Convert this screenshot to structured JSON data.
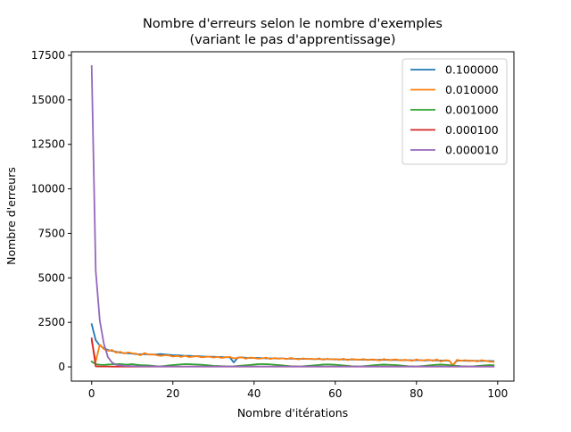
{
  "chart_data": {
    "type": "line",
    "title": "Nombre d'erreurs selon le nombre d'exemples",
    "subtitle": "(variant le pas d'apprentissage)",
    "xlabel": "Nombre d'itérations",
    "ylabel": "Nombre d'erreurs",
    "xlim": [
      -5,
      104
    ],
    "ylim": [
      -800,
      17700
    ],
    "xticks": [
      0,
      20,
      40,
      60,
      80,
      100
    ],
    "xtick_labels": [
      "0",
      "20",
      "40",
      "60",
      "80",
      "100"
    ],
    "yticks": [
      0,
      2500,
      5000,
      7500,
      10000,
      12500,
      15000,
      17500
    ],
    "ytick_labels": [
      "0",
      "2500",
      "5000",
      "7500",
      "10000",
      "12500",
      "15000",
      "17500"
    ],
    "grid": false,
    "legend_position": "top-right",
    "x": [
      0,
      1,
      2,
      3,
      4,
      5,
      6,
      7,
      8,
      9,
      10,
      11,
      12,
      13,
      14,
      15,
      16,
      17,
      18,
      19,
      20,
      21,
      22,
      23,
      24,
      25,
      26,
      27,
      28,
      29,
      30,
      31,
      32,
      33,
      34,
      35,
      36,
      37,
      38,
      39,
      40,
      41,
      42,
      43,
      44,
      45,
      46,
      47,
      48,
      49,
      50,
      51,
      52,
      53,
      54,
      55,
      56,
      57,
      58,
      59,
      60,
      61,
      62,
      63,
      64,
      65,
      66,
      67,
      68,
      69,
      70,
      71,
      72,
      73,
      74,
      75,
      76,
      77,
      78,
      79,
      80,
      81,
      82,
      83,
      84,
      85,
      86,
      87,
      88,
      89,
      90,
      91,
      92,
      93,
      94,
      95,
      96,
      97,
      98,
      99
    ],
    "series": [
      {
        "name": "0.100000",
        "color": "#1f77b4",
        "values": [
          2400,
          1500,
          1200,
          1050,
          950,
          900,
          850,
          800,
          780,
          760,
          740,
          720,
          700,
          720,
          700,
          690,
          700,
          720,
          700,
          680,
          660,
          650,
          640,
          620,
          620,
          600,
          610,
          590,
          580,
          570,
          570,
          560,
          550,
          540,
          540,
          250,
          520,
          540,
          510,
          500,
          500,
          500,
          490,
          480,
          480,
          480,
          470,
          480,
          460,
          460,
          460,
          450,
          450,
          450,
          440,
          440,
          440,
          430,
          440,
          430,
          420,
          420,
          420,
          410,
          420,
          410,
          400,
          410,
          400,
          400,
          390,
          400,
          390,
          400,
          380,
          390,
          380,
          380,
          380,
          370,
          370,
          380,
          360,
          370,
          370,
          360,
          360,
          350,
          360,
          100,
          350,
          350,
          340,
          350,
          340,
          340,
          330,
          340,
          330,
          320
        ]
      },
      {
        "name": "0.010000",
        "color": "#ff7f0e",
        "values": [
          1450,
          300,
          1250,
          1000,
          900,
          950,
          800,
          850,
          750,
          820,
          760,
          740,
          650,
          780,
          690,
          700,
          660,
          620,
          660,
          640,
          580,
          620,
          560,
          620,
          550,
          580,
          600,
          540,
          560,
          580,
          520,
          560,
          500,
          540,
          560,
          480,
          500,
          540,
          460,
          520,
          500,
          460,
          480,
          520,
          440,
          500,
          460,
          480,
          440,
          500,
          460,
          420,
          480,
          440,
          460,
          420,
          480,
          400,
          460,
          420,
          440,
          400,
          460,
          380,
          440,
          420,
          400,
          440,
          380,
          420,
          400,
          360,
          440,
          380,
          400,
          420,
          360,
          400,
          380,
          340,
          420,
          360,
          380,
          400,
          340,
          420,
          300,
          380,
          360,
          100,
          400,
          340,
          380,
          320,
          360,
          300,
          380,
          340,
          300,
          280
        ]
      },
      {
        "name": "0.001000",
        "color": "#2ca02c",
        "values": [
          300,
          150,
          120,
          110,
          130,
          140,
          150,
          160,
          140,
          130,
          150,
          120,
          100,
          90,
          80,
          60,
          40,
          30,
          50,
          80,
          100,
          120,
          140,
          160,
          150,
          140,
          130,
          120,
          100,
          80,
          60,
          50,
          40,
          30,
          20,
          30,
          50,
          70,
          90,
          110,
          130,
          150,
          160,
          150,
          140,
          120,
          100,
          80,
          60,
          40,
          30,
          20,
          30,
          50,
          70,
          90,
          110,
          130,
          140,
          130,
          120,
          100,
          80,
          60,
          40,
          30,
          20,
          40,
          60,
          80,
          100,
          120,
          130,
          120,
          110,
          100,
          80,
          60,
          40,
          30,
          20,
          40,
          60,
          80,
          100,
          120,
          130,
          120,
          100,
          80,
          60,
          40,
          30,
          20,
          30,
          50,
          70,
          90,
          100,
          90
        ]
      },
      {
        "name": "0.000100",
        "color": "#d62728",
        "values": [
          1600,
          30,
          20,
          20,
          20,
          15,
          15,
          15,
          15,
          15,
          15,
          15,
          15,
          15,
          15,
          15,
          15,
          15,
          15,
          15,
          15,
          15,
          15,
          15,
          15,
          15,
          15,
          15,
          15,
          15,
          15,
          15,
          15,
          15,
          15,
          15,
          15,
          15,
          15,
          15,
          15,
          15,
          15,
          15,
          15,
          15,
          15,
          15,
          15,
          15,
          15,
          15,
          15,
          15,
          15,
          15,
          15,
          15,
          15,
          15,
          15,
          15,
          15,
          15,
          15,
          15,
          15,
          15,
          15,
          15,
          15,
          15,
          15,
          15,
          15,
          15,
          15,
          15,
          15,
          15,
          15,
          15,
          15,
          15,
          15,
          15,
          15,
          15,
          15,
          15,
          15,
          15,
          15,
          15,
          15,
          15,
          15,
          15,
          15,
          15
        ]
      },
      {
        "name": "0.000010",
        "color": "#9467bd",
        "values": [
          16900,
          5400,
          2600,
          1300,
          550,
          250,
          120,
          80,
          60,
          50,
          40,
          35,
          30,
          28,
          26,
          25,
          24,
          23,
          22,
          21,
          20,
          20,
          20,
          20,
          20,
          20,
          20,
          20,
          20,
          20,
          20,
          20,
          20,
          20,
          20,
          20,
          20,
          20,
          20,
          20,
          20,
          20,
          20,
          20,
          20,
          20,
          20,
          20,
          20,
          20,
          20,
          20,
          20,
          20,
          20,
          20,
          20,
          20,
          20,
          20,
          20,
          20,
          20,
          20,
          20,
          20,
          20,
          20,
          20,
          20,
          20,
          20,
          20,
          20,
          20,
          20,
          20,
          20,
          20,
          20,
          20,
          20,
          20,
          20,
          20,
          20,
          20,
          20,
          20,
          20,
          20,
          20,
          20,
          20,
          20,
          20,
          20,
          20,
          20,
          20
        ]
      }
    ]
  }
}
